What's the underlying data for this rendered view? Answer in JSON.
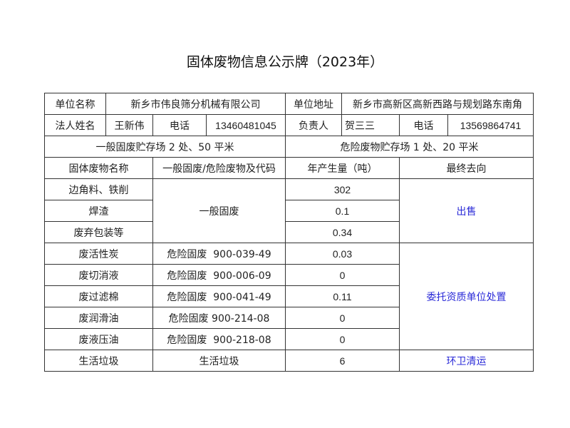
{
  "title": "固体废物信息公示牌（2023年）",
  "info": {
    "unit_name_label": "单位名称",
    "unit_name": "新乡市伟良筛分机械有限公司",
    "unit_addr_label": "单位地址",
    "unit_addr": "新乡市高新区高新西路与规划路东南角",
    "legal_label": "法人姓名",
    "legal": "王新伟",
    "phone_label": "电话",
    "phone1": "13460481045",
    "resp_label": "负责人",
    "resp": "贺三三",
    "phone2": "13569864741",
    "general_storage": "一般固废贮存场 2 处、50 平米",
    "hazard_storage": "危险废物贮存场 1 处、20 平米"
  },
  "headers": [
    "固体废物名称",
    "一般固废/危险废物及代码",
    "年产生量（吨）",
    "最终去向"
  ],
  "general": {
    "category": "一般固废",
    "destination": "出售",
    "rows": [
      {
        "name": "边角料、铁削",
        "amount": "302"
      },
      {
        "name": "焊渣",
        "amount": "0.1"
      },
      {
        "name": "废弃包装等",
        "amount": "0.34"
      }
    ]
  },
  "hazard": {
    "destination": "委托资质单位处置",
    "rows": [
      {
        "name": "废活性炭",
        "code": "危险固废  900-039-49",
        "amount": "0.03"
      },
      {
        "name": "废切消液",
        "code": "危险固废  900-006-09",
        "amount": "0"
      },
      {
        "name": "废过滤棉",
        "code": "危险固废  900-041-49",
        "amount": "0.11"
      },
      {
        "name": "废润滑油",
        "code": "危险固废 900-214-08",
        "amount": "0"
      },
      {
        "name": "废液压油",
        "code": "危险固废  900-218-08",
        "amount": "0"
      }
    ]
  },
  "domestic": {
    "name": "生活垃圾",
    "code": "生活垃圾",
    "amount": "6",
    "destination": "环卫清运"
  },
  "colors": {
    "link": "#2b2bd8",
    "border": "#333333"
  }
}
